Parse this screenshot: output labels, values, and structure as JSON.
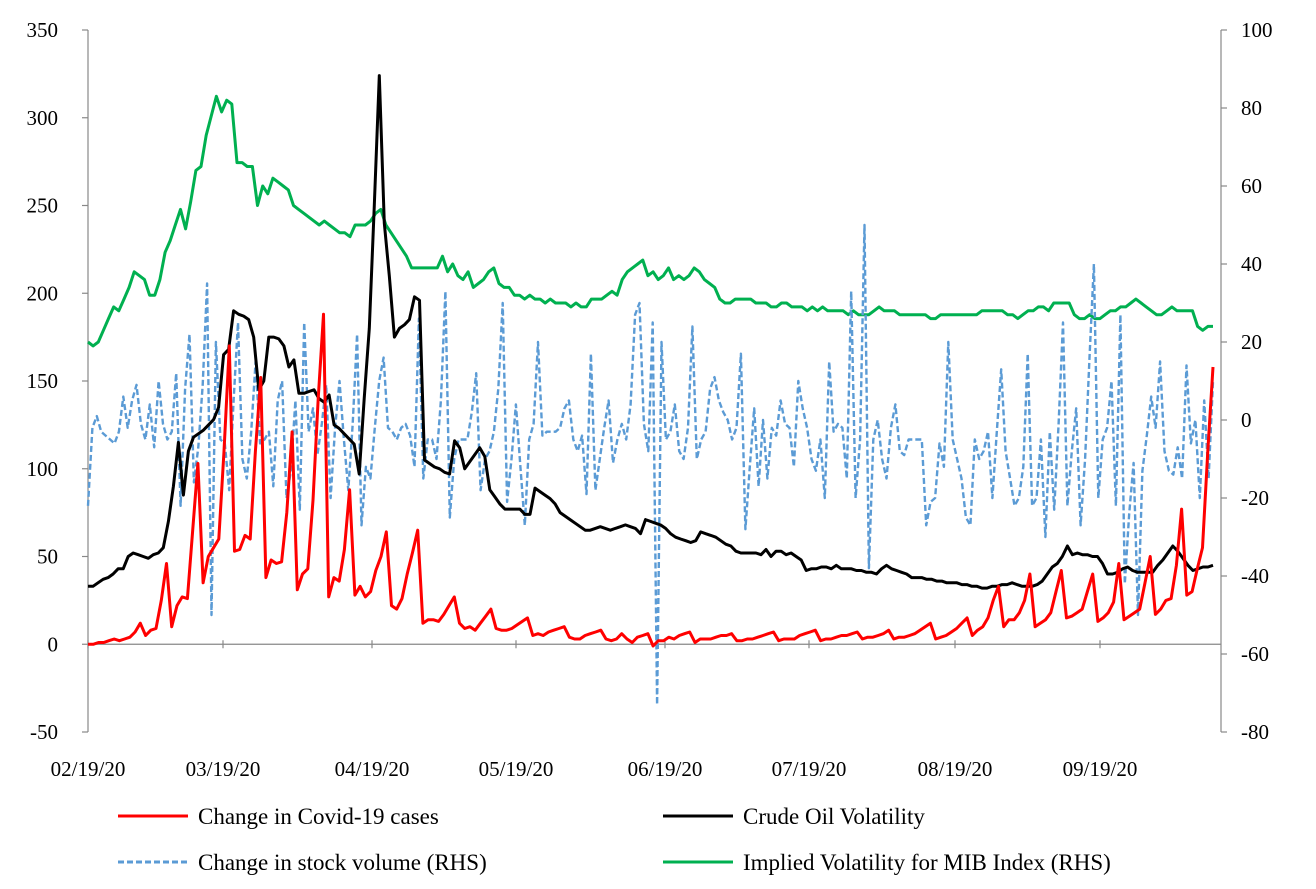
{
  "chart_data": {
    "type": "line",
    "title": "",
    "x_tick_labels": [
      "02/19/20",
      "03/19/20",
      "04/19/20",
      "05/19/20",
      "06/19/20",
      "07/19/20",
      "08/19/20",
      "09/19/20"
    ],
    "y_left": {
      "min": -50,
      "max": 350,
      "step": 50,
      "ticks": [
        "350",
        "300",
        "250",
        "200",
        "150",
        "100",
        "50",
        "0",
        "-50"
      ]
    },
    "y_right": {
      "min": -80,
      "max": 100,
      "step": 20,
      "ticks": [
        "100",
        "80",
        "60",
        "40",
        "20",
        "0",
        "-20",
        "-40",
        "-60",
        "-80"
      ]
    },
    "series": [
      {
        "name": "Change in Covid-19 cases",
        "axis": "left",
        "color": "#ff0000",
        "dash": "solid",
        "values": [
          0,
          0,
          1,
          1,
          2,
          3,
          2,
          3,
          4,
          7,
          12,
          5,
          8,
          9,
          25,
          46,
          10,
          22,
          27,
          26,
          65,
          103,
          35,
          50,
          55,
          60,
          110,
          170,
          53,
          54,
          62,
          60,
          110,
          152,
          38,
          48,
          46,
          47,
          75,
          121,
          31,
          40,
          43,
          82,
          140,
          188,
          27,
          38,
          36,
          54,
          88,
          28,
          33,
          27,
          30,
          42,
          50,
          64,
          22,
          20,
          26,
          40,
          52,
          65,
          12,
          14,
          14,
          13,
          17,
          22,
          27,
          12,
          9,
          10,
          8,
          12,
          16,
          20,
          9,
          8,
          8,
          9,
          11,
          13,
          15,
          5,
          6,
          5,
          7,
          8,
          9,
          10,
          4,
          3,
          3,
          5,
          6,
          7,
          8,
          3,
          2,
          3,
          6,
          3,
          1,
          4,
          5,
          6,
          -1,
          2,
          2,
          4,
          3,
          5,
          6,
          7,
          1,
          3,
          3,
          3,
          4,
          5,
          5,
          6,
          2,
          2,
          3,
          3,
          4,
          5,
          6,
          7,
          2,
          3,
          3,
          3,
          5,
          6,
          7,
          8,
          2,
          3,
          3,
          4,
          5,
          5,
          6,
          7,
          3,
          4,
          4,
          5,
          6,
          8,
          3,
          4,
          4,
          5,
          6,
          8,
          10,
          12,
          3,
          4,
          5,
          7,
          9,
          12,
          15,
          5,
          8,
          10,
          15,
          25,
          33,
          10,
          14,
          14,
          18,
          25,
          40,
          10,
          12,
          14,
          18,
          30,
          42,
          15,
          16,
          18,
          20,
          30,
          40,
          13,
          15,
          18,
          24,
          46,
          14,
          16,
          18,
          20,
          35,
          50,
          17,
          20,
          25,
          26,
          45,
          77,
          28,
          30,
          43,
          55,
          110,
          158
        ]
      },
      {
        "name": "Crude Oil Volatility",
        "axis": "left",
        "color": "#000000",
        "dash": "solid",
        "values": [
          33,
          33,
          35,
          37,
          38,
          40,
          43,
          43,
          50,
          52,
          51,
          50,
          49,
          51,
          52,
          55,
          70,
          90,
          115,
          85,
          110,
          118,
          120,
          122,
          125,
          128,
          135,
          165,
          168,
          190,
          188,
          187,
          185,
          175,
          145,
          150,
          175,
          175,
          174,
          170,
          158,
          162,
          143,
          143,
          144,
          145,
          140,
          138,
          142,
          125,
          123,
          120,
          117,
          114,
          97,
          140,
          180,
          250,
          324,
          240,
          210,
          175,
          180,
          182,
          185,
          198,
          196,
          105,
          103,
          101,
          100,
          98,
          97,
          116,
          112,
          100,
          104,
          108,
          112,
          107,
          88,
          84,
          80,
          77,
          77,
          77,
          77,
          74,
          74,
          89,
          87,
          85,
          83,
          80,
          75,
          73,
          71,
          69,
          67,
          65,
          65,
          66,
          67,
          66,
          65,
          66,
          67,
          68,
          67,
          66,
          63,
          71,
          70,
          69,
          68,
          66,
          63,
          61,
          60,
          59,
          58,
          59,
          64,
          63,
          62,
          61,
          59,
          57,
          56,
          53,
          52,
          52,
          52,
          52,
          51,
          54,
          50,
          53,
          53,
          51,
          52,
          50,
          48,
          42,
          43,
          43,
          44,
          44,
          43,
          45,
          43,
          43,
          43,
          42,
          42,
          41,
          41,
          40,
          43,
          45,
          43,
          42,
          41,
          40,
          38,
          38,
          38,
          37,
          37,
          36,
          36,
          35,
          35,
          35,
          34,
          34,
          33,
          33,
          32,
          32,
          33,
          33,
          34,
          34,
          35,
          34,
          33,
          33,
          33,
          34,
          36,
          40,
          44,
          46,
          50,
          56,
          51,
          52,
          51,
          51,
          50,
          50,
          46,
          40,
          40,
          41,
          43,
          44,
          42,
          41,
          41,
          41,
          41,
          45,
          48,
          52,
          56,
          53,
          49,
          45,
          42,
          43,
          44,
          44,
          45
        ]
      },
      {
        "name": "Change in stock volume (RHS)",
        "axis": "right",
        "color": "#5b9bd5",
        "dash": "dashed",
        "values": [
          -22,
          -2,
          1,
          -3,
          -4,
          -5,
          -6,
          -3,
          6,
          -2,
          5,
          9,
          -1,
          -5,
          4,
          -7,
          10,
          -1,
          -5,
          -3,
          12,
          -22,
          8,
          22,
          -16,
          -7,
          9,
          35,
          -50,
          20,
          -5,
          -6,
          -18,
          5,
          25,
          -10,
          -15,
          -3,
          15,
          -6,
          -5,
          -3,
          -17,
          5,
          10,
          -20,
          -13,
          5,
          -23,
          25,
          -3,
          3,
          -9,
          -1,
          9,
          -20,
          -2,
          10,
          -5,
          -18,
          -1,
          22,
          -27,
          -12,
          -15,
          -2,
          10,
          16,
          -2,
          -3,
          -5,
          -2,
          -1,
          -4,
          -12,
          26,
          -15,
          -5,
          -5,
          -10,
          5,
          33,
          -25,
          -10,
          -5,
          -5,
          -5,
          2,
          12,
          -18,
          -10,
          -8,
          -3,
          8,
          30,
          -21,
          -10,
          4,
          -12,
          -27,
          -5,
          -1,
          20,
          -4,
          -3,
          -3,
          -3,
          -2,
          3,
          5,
          -5,
          -8,
          -4,
          -19,
          17,
          -18,
          -10,
          -2,
          5,
          -11,
          -5,
          -1,
          -5,
          4,
          27,
          30,
          -1,
          -8,
          25,
          -73,
          20,
          -5,
          -3,
          4,
          -8,
          -10,
          -2,
          24,
          -10,
          -5,
          -3,
          8,
          11,
          5,
          2,
          0,
          -5,
          -2,
          17,
          -28,
          -12,
          3,
          -17,
          0,
          -15,
          -2,
          -4,
          5,
          -1,
          -2,
          -12,
          10,
          3,
          -2,
          -10,
          -13,
          -5,
          -20,
          15,
          -3,
          -1,
          -2,
          -15,
          33,
          -20,
          -5,
          50,
          -38,
          -5,
          0,
          -10,
          -15,
          -2,
          4,
          -8,
          -9,
          -5,
          -5,
          -5,
          -5,
          -27,
          -21,
          -20,
          -6,
          -12,
          20,
          -5,
          -10,
          -15,
          -25,
          -27,
          -5,
          -10,
          -8,
          -3,
          -20,
          -3,
          13,
          -8,
          -15,
          -22,
          -20,
          -12,
          17,
          -22,
          -20,
          -5,
          -30,
          -3,
          -23,
          -1,
          25,
          -22,
          -8,
          3,
          -27,
          -10,
          16,
          40,
          -20,
          -5,
          -2,
          10,
          -22,
          27,
          -42,
          -24,
          -11,
          -50,
          -13,
          -4,
          6,
          -2,
          15,
          -8,
          -13,
          -14,
          -7,
          -15,
          14,
          -6,
          0,
          -20,
          5,
          -15,
          10
        ]
      },
      {
        "name": "Implied Volatility for MIB Index (RHS)",
        "axis": "right",
        "color": "#00b050",
        "dash": "solid",
        "values": [
          20,
          19,
          20,
          23,
          26,
          29,
          28,
          31,
          34,
          38,
          37,
          36,
          32,
          32,
          36,
          43,
          46,
          50,
          54,
          49,
          56,
          64,
          65,
          73,
          78,
          83,
          79,
          82,
          81,
          66,
          66,
          65,
          65,
          55,
          60,
          58,
          62,
          61,
          60,
          59,
          55,
          54,
          53,
          52,
          51,
          50,
          51,
          50,
          49,
          48,
          48,
          47,
          50,
          50,
          50,
          51,
          53,
          54,
          50,
          48,
          46,
          44,
          42,
          39,
          39,
          39,
          39,
          39,
          39,
          42,
          38,
          40,
          37,
          36,
          38,
          34,
          35,
          36,
          38,
          39,
          35,
          34,
          34,
          32,
          32,
          31,
          32,
          31,
          31,
          30,
          31,
          30,
          30,
          30,
          29,
          30,
          29,
          29,
          31,
          31,
          31,
          32,
          33,
          32,
          36,
          38,
          39,
          40,
          41,
          37,
          38,
          36,
          37,
          39,
          36,
          37,
          36,
          37,
          39,
          38,
          36,
          35,
          34,
          31,
          30,
          30,
          31,
          31,
          31,
          31,
          30,
          30,
          30,
          29,
          29,
          30,
          30,
          29,
          29,
          29,
          28,
          29,
          28,
          29,
          28,
          28,
          28,
          28,
          27,
          28,
          27,
          27,
          27,
          28,
          29,
          28,
          28,
          28,
          27,
          27,
          27,
          27,
          27,
          27,
          26,
          26,
          27,
          27,
          27,
          27,
          27,
          27,
          27,
          27,
          28,
          28,
          28,
          28,
          28,
          27,
          27,
          26,
          27,
          28,
          28,
          29,
          29,
          28,
          30,
          30,
          30,
          30,
          27,
          26,
          26,
          27,
          26,
          26,
          27,
          28,
          28,
          29,
          29,
          30,
          31,
          30,
          29,
          28,
          27,
          27,
          28,
          29,
          28,
          28,
          28,
          28,
          24,
          23,
          24,
          24
        ]
      }
    ],
    "legend": {
      "placement": "bottom",
      "columns": 2
    }
  }
}
